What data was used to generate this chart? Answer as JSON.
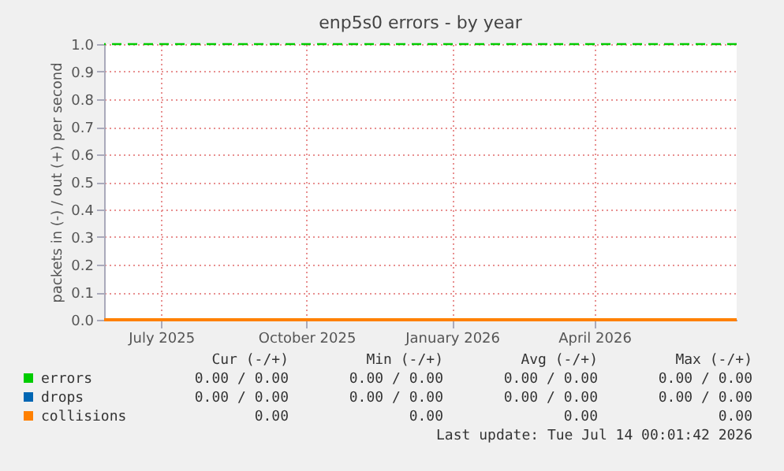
{
  "chart_data": {
    "type": "line",
    "title": "enp5s0 errors - by year",
    "ylabel": "packets in (-) / out (+) per second",
    "x": [
      "2025-06-09",
      "2026-07-14"
    ],
    "series": [
      {
        "name": "errors",
        "color": "#00cc00",
        "values": [
          null,
          null
        ]
      },
      {
        "name": "drops",
        "color": "#0066b3",
        "values": [
          null,
          null
        ]
      },
      {
        "name": "collisions",
        "color": "#ff8000",
        "values": [
          0,
          0
        ]
      }
    ],
    "xlim": [
      "2025-06-09",
      "2026-07-14"
    ],
    "xticks": [
      {
        "value": "2025-07-15",
        "label": "July 2025"
      },
      {
        "value": "2025-10-15",
        "label": "October 2025"
      },
      {
        "value": "2026-01-15",
        "label": "January 2026"
      },
      {
        "value": "2026-04-15",
        "label": "April 2026"
      }
    ],
    "ylim": [
      0,
      1
    ],
    "yticks": [
      {
        "value": 0,
        "label": "0.0"
      },
      {
        "value": 0.1,
        "label": "0.1"
      },
      {
        "value": 0.2,
        "label": "0.2"
      },
      {
        "value": 0.3,
        "label": "0.3"
      },
      {
        "value": 0.4,
        "label": "0.4"
      },
      {
        "value": 0.5,
        "label": "0.5"
      },
      {
        "value": 0.6,
        "label": "0.6"
      },
      {
        "value": 0.7,
        "label": "0.7"
      },
      {
        "value": 0.8,
        "label": "0.8"
      },
      {
        "value": 0.9,
        "label": "0.9"
      },
      {
        "value": 1,
        "label": "1.0"
      }
    ],
    "ref_lines": [
      {
        "axis": "y",
        "value": 1.0,
        "color": "#00cc00",
        "line_style": "dashed"
      }
    ],
    "grid": true,
    "legend": "bottom left",
    "line_style": "solid",
    "annotations": [
      "Cur (-/+)",
      "Min (-/+)",
      "Avg (-/+)",
      "Max (-/+)",
      "0.00 /  0.00",
      "0.00 /  0.00",
      "0.00 /  0.00",
      "0.00 /  0.00",
      "0.00 /  0.00",
      "0.00 /  0.00",
      "0.00 /  0.00",
      "0.00 /  0.00",
      "0.00",
      "0.00",
      "0.00",
      "0.00",
      "Last update: Tue Jul 14 00:01:42 2026"
    ]
  }
}
